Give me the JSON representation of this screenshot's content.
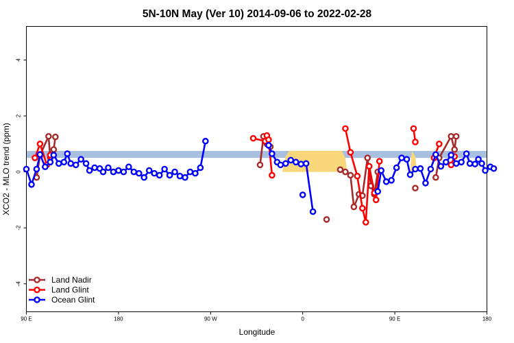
{
  "chart_data": {
    "type": "line",
    "title": "5N-10N May (Ver 10)   2014-09-06 to 2022-02-28",
    "xlabel": "Longitude",
    "ylabel": "XCO2 - MLO trend (ppm)",
    "xlim": [
      -90,
      180
    ],
    "ylim": [
      -5,
      5.2
    ],
    "x_ticks": [
      {
        "value": -90,
        "label": "90 E"
      },
      {
        "value": -36,
        "label": "180"
      },
      {
        "value": 18,
        "label": "90 W"
      },
      {
        "value": 72,
        "label": "0"
      },
      {
        "value": 126,
        "label": "90 E"
      },
      {
        "value": 180,
        "label": "180"
      }
    ],
    "y_ticks": [
      {
        "value": -4,
        "label": "-4"
      },
      {
        "value": -2,
        "label": "-2"
      },
      {
        "value": 0,
        "label": "0"
      },
      {
        "value": 2,
        "label": "2"
      },
      {
        "value": 4,
        "label": "4"
      }
    ],
    "grid": false,
    "legend_position": "bottom-left",
    "colors": {
      "band": "#a8bfe0",
      "land_fraction": "#fad77a",
      "land_nadir": "#a52a2a",
      "land_glint": "#ff0000",
      "ocean_glint": "#0000ff"
    },
    "band": {
      "ymin": 0.5,
      "ymax": 0.75
    },
    "land_fraction": [
      [
        60,
        0
      ],
      [
        62,
        0.55
      ],
      [
        64,
        0.75
      ],
      [
        95,
        0.75
      ],
      [
        97,
        0.5
      ],
      [
        98,
        0
      ],
      [
        135,
        0
      ],
      [
        136,
        0.75
      ],
      [
        138,
        0.55
      ],
      [
        139,
        0
      ]
    ],
    "series": [
      {
        "name": "Land Nadir",
        "segments": [
          [
            [
              -84,
              -0.2
            ],
            [
              -82,
              0.6
            ],
            [
              -77,
              1.27
            ],
            [
              -76,
              0.5
            ],
            [
              -74,
              0.8
            ],
            [
              -73,
              1.25
            ]
          ],
          [
            [
              47,
              0.25
            ],
            [
              49,
              1.27
            ],
            [
              51,
              1.0
            ],
            [
              53,
              0.9
            ]
          ],
          [
            [
              86,
              -1.7
            ]
          ],
          [
            [
              94,
              0.08
            ],
            [
              97,
              0.0
            ],
            [
              100,
              -0.12
            ],
            [
              102,
              -1.25
            ],
            [
              105,
              -0.8
            ],
            [
              107,
              -0.85
            ],
            [
              110,
              0.5
            ],
            [
              112,
              -0.5
            ],
            [
              114,
              -0.8
            ],
            [
              116,
              0.0
            ]
          ],
          [
            [
              138,
              -0.58
            ]
          ],
          [
            [
              150,
              -0.2
            ],
            [
              152,
              0.5
            ],
            [
              159,
              1.27
            ],
            [
              161,
              0.8
            ],
            [
              162,
              1.27
            ]
          ]
        ]
      },
      {
        "name": "Land Glint",
        "segments": [
          [
            [
              -85,
              0.5
            ],
            [
              -82,
              1.0
            ],
            [
              -78,
              0.25
            ],
            [
              -76,
              0.6
            ]
          ],
          [
            [
              43,
              1.2
            ],
            [
              50,
              1.1
            ],
            [
              51,
              1.3
            ],
            [
              52,
              1.15
            ],
            [
              54,
              -0.12
            ]
          ],
          [
            [
              97,
              1.55
            ],
            [
              100,
              0.7
            ],
            [
              104,
              -0.15
            ],
            [
              107,
              -1.3
            ],
            [
              109,
              -1.8
            ],
            [
              111,
              0.2
            ],
            [
              114,
              -0.75
            ],
            [
              115,
              -1.0
            ],
            [
              117,
              0.38
            ]
          ],
          [
            [
              137,
              1.55
            ],
            [
              138,
              1.07
            ]
          ],
          [
            [
              149,
              0.5
            ],
            [
              152,
              1.0
            ]
          ],
          [
            [
              159,
              0.25
            ],
            [
              161,
              0.55
            ]
          ]
        ]
      },
      {
        "name": "Ocean Glint",
        "segments": [
          [
            [
              -90,
              0.1
            ],
            [
              -87,
              -0.45
            ],
            [
              -84,
              0.1
            ],
            [
              -82,
              0.62
            ],
            [
              -79,
              0.18
            ],
            [
              -76,
              0.35
            ],
            [
              -74,
              0.6
            ],
            [
              -71,
              0.3
            ],
            [
              -68,
              0.35
            ],
            [
              -66,
              0.65
            ],
            [
              -64,
              0.3
            ],
            [
              -61,
              0.25
            ],
            [
              -58,
              0.45
            ],
            [
              -55,
              0.3
            ],
            [
              -53,
              0.05
            ],
            [
              -50,
              0.15
            ],
            [
              -47,
              0.12
            ],
            [
              -45,
              0.0
            ],
            [
              -42,
              0.15
            ],
            [
              -39,
              0.0
            ],
            [
              -36,
              0.05
            ],
            [
              -33,
              0.0
            ],
            [
              -30,
              0.18
            ],
            [
              -27,
              0.0
            ],
            [
              -24,
              -0.05
            ],
            [
              -21,
              -0.2
            ],
            [
              -18,
              0.05
            ],
            [
              -15,
              -0.05
            ],
            [
              -12,
              -0.12
            ],
            [
              -9,
              0.1
            ],
            [
              -6,
              -0.12
            ],
            [
              -3,
              0.0
            ],
            [
              0,
              -0.15
            ],
            [
              3,
              -0.2
            ],
            [
              6,
              0.0
            ],
            [
              9,
              -0.05
            ],
            [
              12,
              0.15
            ],
            [
              15,
              1.1
            ]
          ],
          [
            [
              52,
              0.95
            ],
            [
              54,
              0.65
            ],
            [
              57,
              0.35
            ],
            [
              59,
              0.25
            ],
            [
              62,
              0.3
            ],
            [
              65,
              0.42
            ],
            [
              68,
              0.35
            ],
            [
              71,
              0.28
            ],
            [
              74,
              0.3
            ],
            [
              78,
              -1.42
            ]
          ],
          [
            [
              72,
              -0.82
            ]
          ],
          [
            [
              116,
              -0.7
            ],
            [
              118,
              0.05
            ],
            [
              121,
              -0.35
            ],
            [
              124,
              -0.3
            ],
            [
              127,
              0.15
            ],
            [
              130,
              0.5
            ],
            [
              133,
              0.45
            ],
            [
              135,
              -0.1
            ],
            [
              138,
              0.1
            ],
            [
              141,
              0.12
            ],
            [
              144,
              -0.4
            ],
            [
              147,
              0.1
            ],
            [
              150,
              0.62
            ],
            [
              153,
              0.2
            ],
            [
              156,
              0.35
            ],
            [
              159,
              0.6
            ],
            [
              162,
              0.3
            ],
            [
              165,
              0.35
            ],
            [
              168,
              0.65
            ],
            [
              170,
              0.3
            ],
            [
              173,
              0.28
            ],
            [
              175,
              0.45
            ],
            [
              177,
              0.3
            ],
            [
              179,
              0.05
            ],
            [
              182,
              0.18
            ],
            [
              184,
              0.12
            ]
          ]
        ]
      }
    ]
  }
}
